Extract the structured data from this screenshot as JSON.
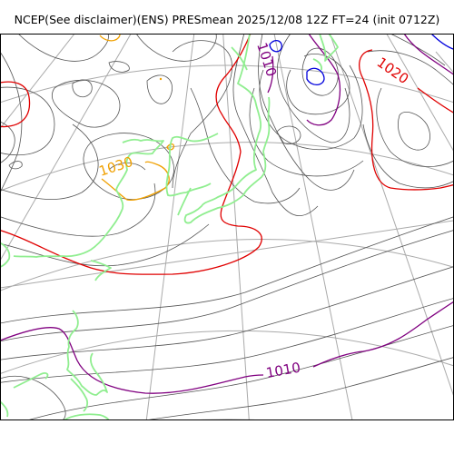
{
  "header": {
    "title": "NCEP(See disclaimer)(ENS) PRESmean 2025/12/08 12Z FT=24 (init 0712Z)"
  },
  "map": {
    "colors": {
      "isobar_thin": "#555555",
      "isobar_1010": "#800080",
      "isobar_1020": "#e00000",
      "isobar_1030": "#f0a000",
      "low_center": "#0000dd",
      "coastline": "#90ee90",
      "graticule": "#aaaaaa"
    },
    "contour_labels": {
      "l1010_top": "1010",
      "l1020": "1020",
      "l1030": "1030",
      "l1010_bottom": "1010"
    }
  }
}
